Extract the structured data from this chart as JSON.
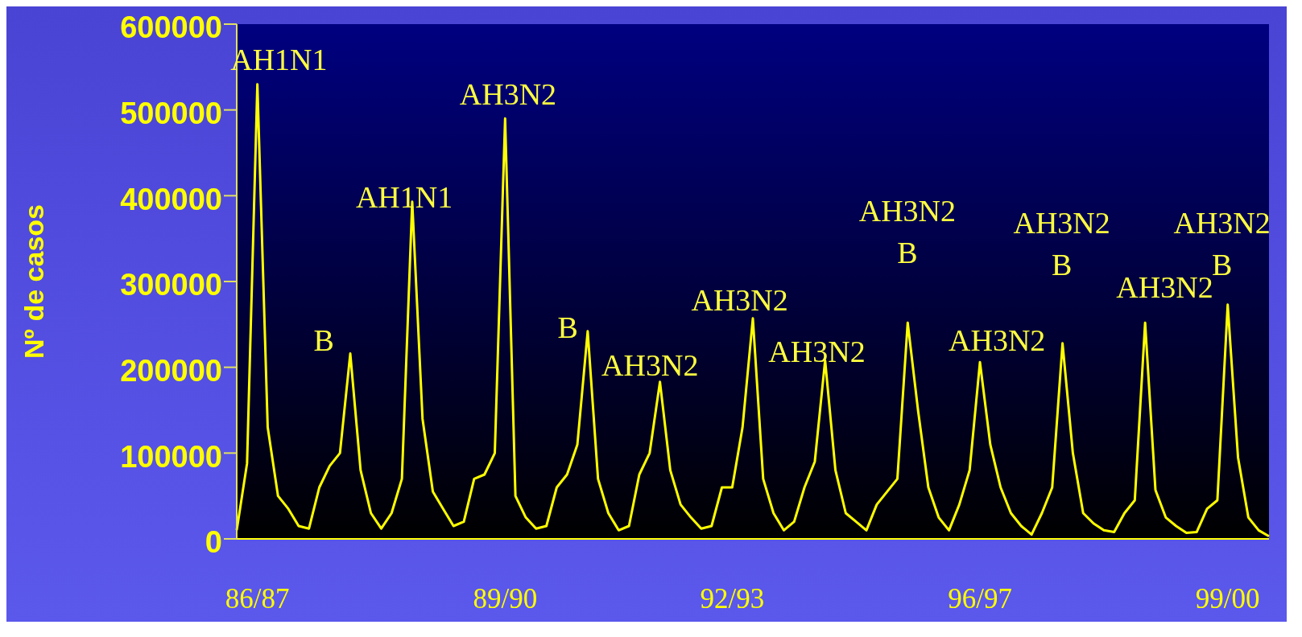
{
  "chart_data": {
    "type": "line",
    "ylabel": "Nº de casos",
    "ylim": [
      0,
      600000
    ],
    "yticks": [
      0,
      100000,
      200000,
      300000,
      400000,
      500000,
      600000
    ],
    "marker": "none",
    "line_style": "solid",
    "categories": [
      null,
      null,
      "86/87",
      null,
      null,
      null,
      null,
      null,
      null,
      null,
      null,
      null,
      null,
      null,
      null,
      null,
      null,
      null,
      null,
      null,
      null,
      null,
      null,
      null,
      null,
      null,
      "89/90",
      null,
      null,
      null,
      null,
      null,
      null,
      null,
      null,
      null,
      null,
      null,
      null,
      null,
      null,
      null,
      null,
      null,
      null,
      null,
      null,
      null,
      "92/93",
      null,
      null,
      null,
      null,
      null,
      null,
      null,
      null,
      null,
      null,
      null,
      null,
      null,
      null,
      null,
      null,
      null,
      null,
      null,
      null,
      null,
      null,
      null,
      "96/97",
      null,
      null,
      null,
      null,
      null,
      null,
      null,
      null,
      null,
      null,
      null,
      null,
      null,
      null,
      null,
      null,
      null,
      null,
      null,
      null,
      null,
      null,
      null,
      "99/00",
      null,
      null,
      null,
      null
    ],
    "series": [
      {
        "color": "#ffff00",
        "values": [
          10000,
          88000,
          530000,
          130000,
          50000,
          35000,
          15000,
          12000,
          60000,
          85000,
          100000,
          216000,
          80000,
          30000,
          12000,
          30000,
          70000,
          393000,
          140000,
          55000,
          35000,
          15000,
          20000,
          70000,
          75000,
          100000,
          490000,
          50000,
          25000,
          12000,
          15000,
          60000,
          75000,
          110000,
          242000,
          70000,
          30000,
          10000,
          15000,
          75000,
          100000,
          183000,
          80000,
          40000,
          25000,
          12000,
          15000,
          60000,
          60000,
          130000,
          257000,
          70000,
          30000,
          10000,
          20000,
          60000,
          90000,
          208000,
          80000,
          30000,
          20000,
          10000,
          40000,
          55000,
          70000,
          252000,
          150000,
          60000,
          25000,
          10000,
          40000,
          80000,
          206000,
          110000,
          60000,
          30000,
          15000,
          5000,
          30000,
          60000,
          228000,
          100000,
          30000,
          18000,
          10000,
          8000,
          30000,
          45000,
          252000,
          57000,
          25000,
          15000,
          7000,
          8000,
          35000,
          45000,
          273000,
          95000,
          25000,
          10000,
          3000
        ]
      }
    ],
    "annotations": [
      "AH1N1",
      "B",
      "AH1N1",
      "AH3N2",
      "B",
      "AH3N2",
      "AH3N2",
      "AH3N2",
      "AH3N2\nB",
      "AH3N2",
      "AH3N2\nB",
      "AH3N2",
      "AH3N2\nB"
    ]
  }
}
